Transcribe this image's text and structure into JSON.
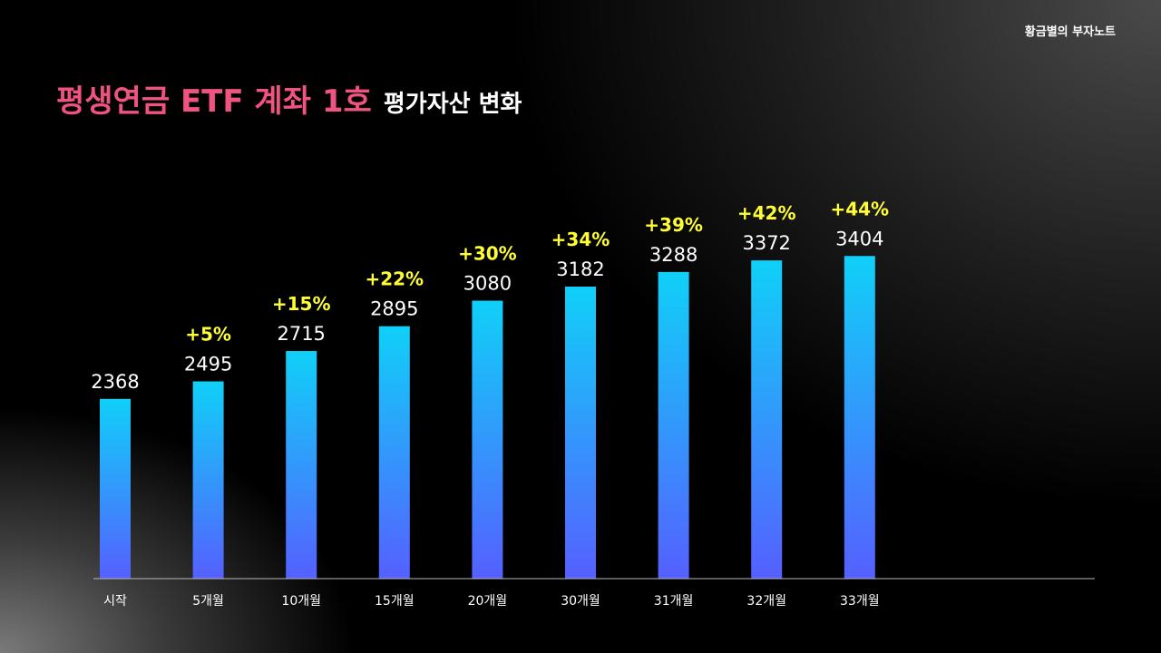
{
  "brand": "황금별의 부자노트",
  "title": {
    "main": "평생연금 ETF 계좌 1호",
    "sub": "평가자산 변화"
  },
  "colors": {
    "title_accent": "#f0537f",
    "bar_top": "#10d0f8",
    "bar_bottom": "#5560ff",
    "growth_label": "#ffff33",
    "value_label": "#ffffff",
    "axis": "#b8b8b8"
  },
  "chart_data": {
    "type": "bar",
    "categories": [
      "시작",
      "5개월",
      "10개월",
      "15개월",
      "20개월",
      "30개월",
      "31개월",
      "32개월",
      "33개월"
    ],
    "values": [
      2368,
      2495,
      2715,
      2895,
      3080,
      3182,
      3288,
      3372,
      3404
    ],
    "growth_labels": [
      "",
      "+5%",
      "+15%",
      "+22%",
      "+30%",
      "+34%",
      "+39%",
      "+42%",
      "+44%"
    ],
    "title": "평생연금 ETF 계좌 1호 평가자산 변화",
    "xlabel": "",
    "ylabel": "",
    "grid": false,
    "legend": "none"
  }
}
